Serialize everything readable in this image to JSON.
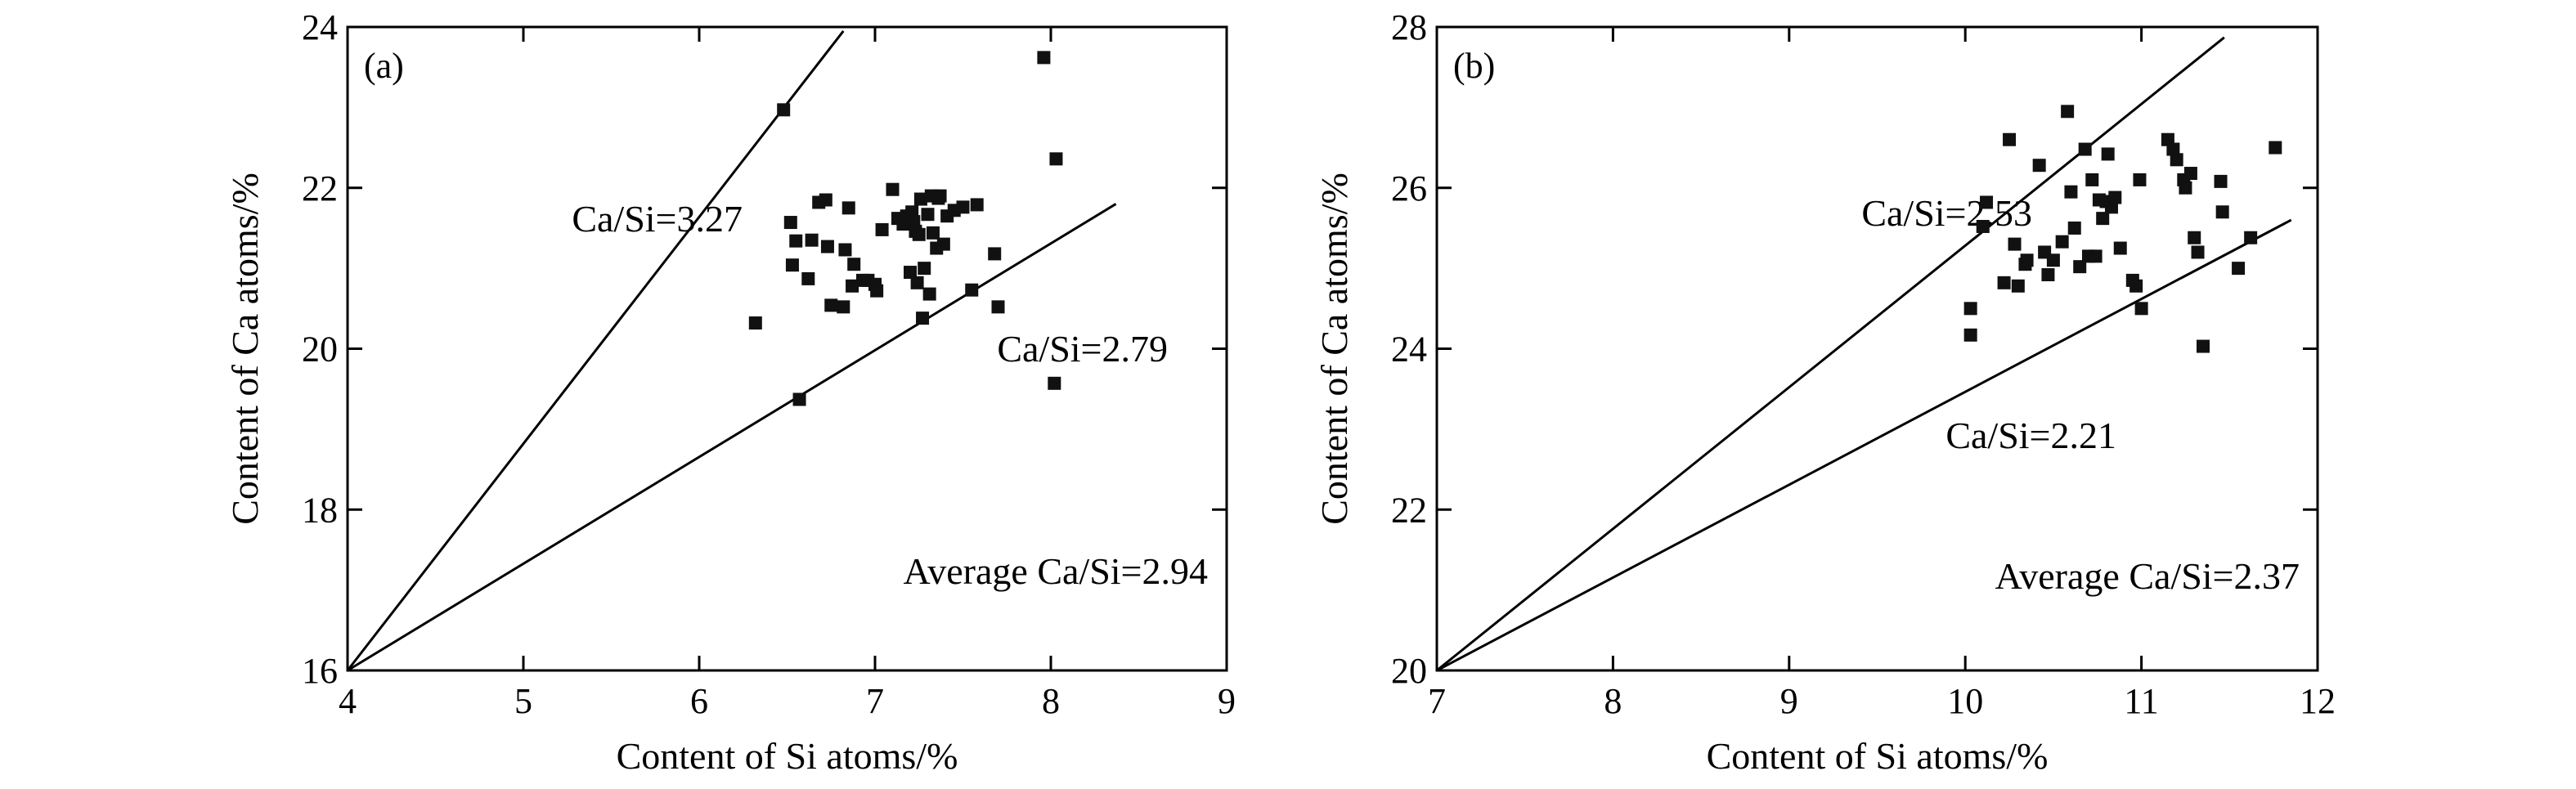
{
  "chart_data": [
    {
      "type": "scatter",
      "panel_label": "(a)",
      "xlabel": "Content of Si atoms/%",
      "ylabel": "Content of Ca atoms/%",
      "xlim": [
        4,
        9
      ],
      "ylim": [
        16,
        24
      ],
      "xticks": [
        4,
        5,
        6,
        7,
        8,
        9
      ],
      "yticks": [
        16,
        18,
        20,
        22,
        24
      ],
      "reference_lines": [
        {
          "label": "Ca/Si=3.27",
          "points": [
            [
              4,
              16
            ],
            [
              6.82,
              23.95
            ]
          ]
        },
        {
          "label": "Ca/Si=2.79",
          "points": [
            [
              4,
              16
            ],
            [
              8.37,
              21.8
            ]
          ]
        }
      ],
      "annotations": [
        "Ca/Si=3.27",
        "Ca/Si=2.79",
        "Average Ca/Si=2.94"
      ],
      "points": [
        [
          6.48,
          22.97
        ],
        [
          7.96,
          23.62
        ],
        [
          8.03,
          22.36
        ],
        [
          6.32,
          20.32
        ],
        [
          6.57,
          19.37
        ],
        [
          8.02,
          19.57
        ],
        [
          6.52,
          21.57
        ],
        [
          6.55,
          21.34
        ],
        [
          6.53,
          21.04
        ],
        [
          6.62,
          20.87
        ],
        [
          6.64,
          21.35
        ],
        [
          6.68,
          21.82
        ],
        [
          6.72,
          21.85
        ],
        [
          6.73,
          21.27
        ],
        [
          6.75,
          20.54
        ],
        [
          6.82,
          20.52
        ],
        [
          6.83,
          21.23
        ],
        [
          6.85,
          21.75
        ],
        [
          6.87,
          20.78
        ],
        [
          6.88,
          21.05
        ],
        [
          6.93,
          20.85
        ],
        [
          6.96,
          20.85
        ],
        [
          7.0,
          20.8
        ],
        [
          7.01,
          20.72
        ],
        [
          7.04,
          21.48
        ],
        [
          7.1,
          21.98
        ],
        [
          7.13,
          21.62
        ],
        [
          7.16,
          21.55
        ],
        [
          7.18,
          21.65
        ],
        [
          7.2,
          20.95
        ],
        [
          7.21,
          21.7
        ],
        [
          7.22,
          21.58
        ],
        [
          7.23,
          21.46
        ],
        [
          7.24,
          20.82
        ],
        [
          7.25,
          21.42
        ],
        [
          7.26,
          21.86
        ],
        [
          7.27,
          20.38
        ],
        [
          7.28,
          21.0
        ],
        [
          7.3,
          21.67
        ],
        [
          7.31,
          20.68
        ],
        [
          7.32,
          21.9
        ],
        [
          7.33,
          21.44
        ],
        [
          7.35,
          21.25
        ],
        [
          7.36,
          21.87
        ],
        [
          7.37,
          21.9
        ],
        [
          7.39,
          21.3
        ],
        [
          7.41,
          21.65
        ],
        [
          7.45,
          21.72
        ],
        [
          7.5,
          21.76
        ],
        [
          7.55,
          20.73
        ],
        [
          7.58,
          21.79
        ],
        [
          7.68,
          21.18
        ],
        [
          7.7,
          20.52
        ]
      ]
    },
    {
      "type": "scatter",
      "panel_label": "(b)",
      "xlabel": "Content of Si atoms/%",
      "ylabel": "Content of Ca atoms/%",
      "xlim": [
        7,
        12
      ],
      "ylim": [
        20,
        28
      ],
      "xticks": [
        7,
        8,
        9,
        10,
        11,
        12
      ],
      "yticks": [
        20,
        22,
        24,
        26,
        28
      ],
      "reference_lines": [
        {
          "label": "Ca/Si=2.53",
          "points": [
            [
              7,
              20
            ],
            [
              11.47,
              27.87
            ]
          ]
        },
        {
          "label": "Ca/Si=2.21",
          "points": [
            [
              7,
              20
            ],
            [
              11.85,
              25.6
            ]
          ]
        }
      ],
      "annotations": [
        "Ca/Si=2.53",
        "Ca/Si=2.21",
        "Average Ca/Si=2.37"
      ],
      "points": [
        [
          10.03,
          24.5
        ],
        [
          10.03,
          24.17
        ],
        [
          10.1,
          25.52
        ],
        [
          10.12,
          25.82
        ],
        [
          10.22,
          24.82
        ],
        [
          10.25,
          26.6
        ],
        [
          10.28,
          25.3
        ],
        [
          10.3,
          24.78
        ],
        [
          10.34,
          25.05
        ],
        [
          10.35,
          25.1
        ],
        [
          10.42,
          26.28
        ],
        [
          10.45,
          25.2
        ],
        [
          10.47,
          24.92
        ],
        [
          10.5,
          25.1
        ],
        [
          10.55,
          25.33
        ],
        [
          10.58,
          26.95
        ],
        [
          10.6,
          25.95
        ],
        [
          10.62,
          25.5
        ],
        [
          10.65,
          25.02
        ],
        [
          10.68,
          26.48
        ],
        [
          10.7,
          25.15
        ],
        [
          10.72,
          26.1
        ],
        [
          10.74,
          25.15
        ],
        [
          10.76,
          25.85
        ],
        [
          10.78,
          25.62
        ],
        [
          10.8,
          25.83
        ],
        [
          10.81,
          26.42
        ],
        [
          10.83,
          25.76
        ],
        [
          10.85,
          25.88
        ],
        [
          10.88,
          25.25
        ],
        [
          10.95,
          24.85
        ],
        [
          10.97,
          24.78
        ],
        [
          10.99,
          26.1
        ],
        [
          11.0,
          24.5
        ],
        [
          11.15,
          26.6
        ],
        [
          11.18,
          26.48
        ],
        [
          11.2,
          26.35
        ],
        [
          11.24,
          26.1
        ],
        [
          11.25,
          26.0
        ],
        [
          11.28,
          26.18
        ],
        [
          11.3,
          25.38
        ],
        [
          11.32,
          25.2
        ],
        [
          11.35,
          24.03
        ],
        [
          11.45,
          26.08
        ],
        [
          11.46,
          25.7
        ],
        [
          11.55,
          25.0
        ],
        [
          11.62,
          25.38
        ],
        [
          11.76,
          26.5
        ]
      ]
    }
  ]
}
